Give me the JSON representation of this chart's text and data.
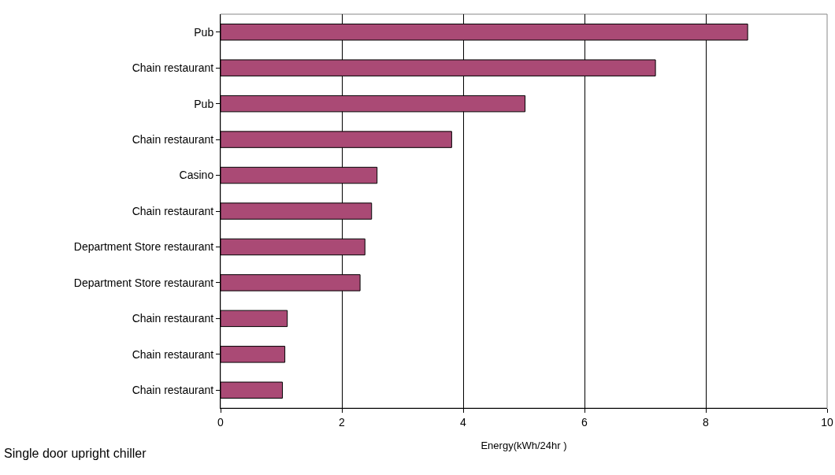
{
  "chart_data": {
    "type": "bar",
    "orientation": "horizontal",
    "categories": [
      "Pub",
      "Chain restaurant",
      "Pub",
      "Chain restaurant",
      "Casino",
      "Chain restaurant",
      "Department Store restaurant",
      "Department Store restaurant",
      "Chain restaurant",
      "Chain restaurant",
      "Chain restaurant"
    ],
    "values": [
      8.69,
      7.17,
      5.02,
      3.81,
      2.58,
      2.49,
      2.38,
      2.3,
      1.1,
      1.06,
      1.02
    ],
    "color": "#aa4a75",
    "xlim": [
      0,
      10
    ],
    "xticks": [
      0,
      2,
      4,
      6,
      8,
      10
    ],
    "xlabel": "Energy(kWh/24hr )",
    "annotations": [
      "Single door upright chiller"
    ],
    "grid": "x",
    "legend": false
  }
}
